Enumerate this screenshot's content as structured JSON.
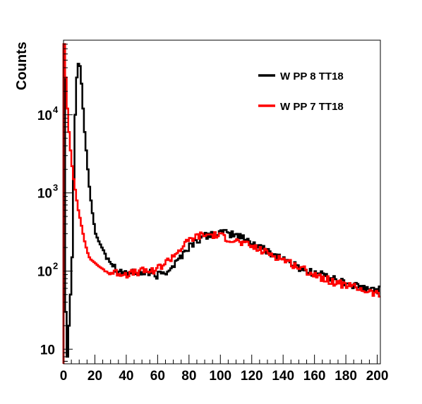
{
  "chart_data": {
    "type": "line",
    "title": "",
    "xlabel": "",
    "ylabel": "Counts",
    "xlim": [
      0,
      202
    ],
    "ylim": [
      6.5,
      90000
    ],
    "y_scale": "log",
    "x_ticks": [
      0,
      20,
      40,
      60,
      80,
      100,
      120,
      140,
      160,
      180,
      200
    ],
    "x_tick_labels": [
      "0",
      "20",
      "40",
      "60",
      "80",
      "100",
      "120",
      "140",
      "160",
      "180",
      "200"
    ],
    "y_ticks": [
      {
        "value": 10,
        "base": "10",
        "exp": ""
      },
      {
        "value": 100,
        "base": "10",
        "exp": "2"
      },
      {
        "value": 1000,
        "base": "10",
        "exp": "3"
      },
      {
        "value": 10000,
        "base": "10",
        "exp": "4"
      }
    ],
    "legend_position": "top-right",
    "grid": false,
    "bin_width": 1,
    "series": [
      {
        "name": "W PP 8 TT18",
        "color": "#000000",
        "points": [
          [
            0,
            80000
          ],
          [
            1,
            30
          ],
          [
            2,
            8
          ],
          [
            3,
            20
          ],
          [
            4,
            50
          ],
          [
            5,
            150
          ],
          [
            6,
            1500
          ],
          [
            7,
            10000
          ],
          [
            8,
            30000
          ],
          [
            9,
            45000
          ],
          [
            10,
            42000
          ],
          [
            11,
            25000
          ],
          [
            12,
            12000
          ],
          [
            13,
            6000
          ],
          [
            14,
            3500
          ],
          [
            15,
            2000
          ],
          [
            16,
            1200
          ],
          [
            17,
            800
          ],
          [
            18,
            550
          ],
          [
            19,
            400
          ],
          [
            20,
            300
          ],
          [
            22,
            240
          ],
          [
            24,
            200
          ],
          [
            26,
            170
          ],
          [
            28,
            150
          ],
          [
            30,
            130
          ],
          [
            32,
            115
          ],
          [
            34,
            105
          ],
          [
            36,
            100
          ],
          [
            38,
            98
          ],
          [
            40,
            95
          ],
          [
            45,
            95
          ],
          [
            50,
            95
          ],
          [
            55,
            95
          ],
          [
            58,
            85
          ],
          [
            60,
            90
          ],
          [
            65,
            100
          ],
          [
            70,
            120
          ],
          [
            75,
            160
          ],
          [
            80,
            210
          ],
          [
            85,
            250
          ],
          [
            90,
            280
          ],
          [
            95,
            300
          ],
          [
            100,
            310
          ],
          [
            105,
            300
          ],
          [
            110,
            290
          ],
          [
            115,
            260
          ],
          [
            120,
            230
          ],
          [
            125,
            200
          ],
          [
            130,
            180
          ],
          [
            135,
            160
          ],
          [
            140,
            145
          ],
          [
            145,
            125
          ],
          [
            150,
            110
          ],
          [
            155,
            100
          ],
          [
            160,
            95
          ],
          [
            165,
            90
          ],
          [
            170,
            80
          ],
          [
            175,
            75
          ],
          [
            180,
            70
          ],
          [
            185,
            65
          ],
          [
            190,
            60
          ],
          [
            195,
            58
          ],
          [
            200,
            58
          ]
        ]
      },
      {
        "name": "W PP 7 TT18",
        "color": "#ff0000",
        "points": [
          [
            0,
            80000
          ],
          [
            1,
            30000
          ],
          [
            2,
            12000
          ],
          [
            3,
            6000
          ],
          [
            4,
            3500
          ],
          [
            5,
            2200
          ],
          [
            6,
            1500
          ],
          [
            7,
            1100
          ],
          [
            8,
            800
          ],
          [
            9,
            600
          ],
          [
            10,
            480
          ],
          [
            11,
            380
          ],
          [
            12,
            300
          ],
          [
            13,
            240
          ],
          [
            14,
            200
          ],
          [
            15,
            170
          ],
          [
            16,
            150
          ],
          [
            17,
            140
          ],
          [
            18,
            135
          ],
          [
            20,
            125
          ],
          [
            22,
            115
          ],
          [
            25,
            105
          ],
          [
            28,
            95
          ],
          [
            30,
            95
          ],
          [
            35,
            95
          ],
          [
            40,
            92
          ],
          [
            45,
            95
          ],
          [
            50,
            100
          ],
          [
            55,
            100
          ],
          [
            60,
            110
          ],
          [
            65,
            130
          ],
          [
            70,
            160
          ],
          [
            75,
            200
          ],
          [
            80,
            250
          ],
          [
            85,
            280
          ],
          [
            90,
            290
          ],
          [
            95,
            290
          ],
          [
            100,
            280
          ],
          [
            105,
            260
          ],
          [
            110,
            240
          ],
          [
            115,
            220
          ],
          [
            120,
            205
          ],
          [
            125,
            185
          ],
          [
            130,
            170
          ],
          [
            135,
            155
          ],
          [
            140,
            140
          ],
          [
            145,
            125
          ],
          [
            150,
            110
          ],
          [
            155,
            100
          ],
          [
            160,
            90
          ],
          [
            165,
            82
          ],
          [
            170,
            75
          ],
          [
            175,
            70
          ],
          [
            180,
            66
          ],
          [
            185,
            62
          ],
          [
            190,
            58
          ],
          [
            195,
            54
          ],
          [
            200,
            50
          ]
        ]
      }
    ]
  }
}
